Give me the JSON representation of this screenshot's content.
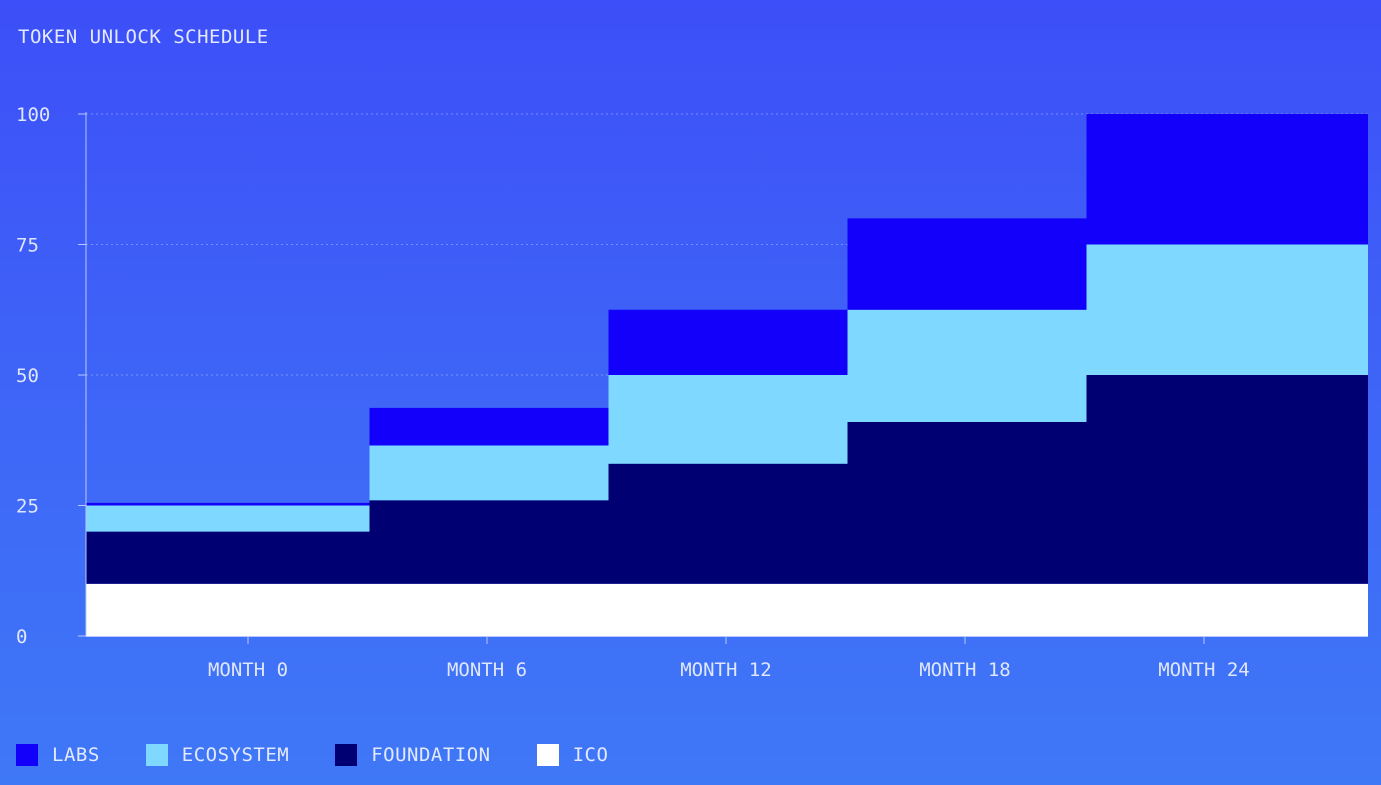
{
  "chart_data": {
    "type": "bar",
    "title": "TOKEN UNLOCK SCHEDULE",
    "stacked": true,
    "step": true,
    "categories": [
      "MONTH 0",
      "MONTH 6",
      "MONTH 12",
      "MONTH 18",
      "MONTH 24"
    ],
    "ylim": [
      0,
      100
    ],
    "yticks": [
      0,
      25,
      50,
      75,
      100
    ],
    "grid": true,
    "legend_position": "bottom-left",
    "series": [
      {
        "name": "ICO",
        "color": "#ffffff",
        "values": [
          10,
          10,
          10,
          10,
          10
        ]
      },
      {
        "name": "FOUNDATION",
        "color": "#000073",
        "values": [
          10,
          16,
          23,
          31,
          40
        ]
      },
      {
        "name": "ECOSYSTEM",
        "color": "#7fd8ff",
        "values": [
          5,
          10.5,
          17,
          21.5,
          25
        ]
      },
      {
        "name": "LABS",
        "color": "#1200fb",
        "values": [
          0.5,
          7.2,
          12.5,
          17.5,
          25
        ]
      }
    ]
  }
}
